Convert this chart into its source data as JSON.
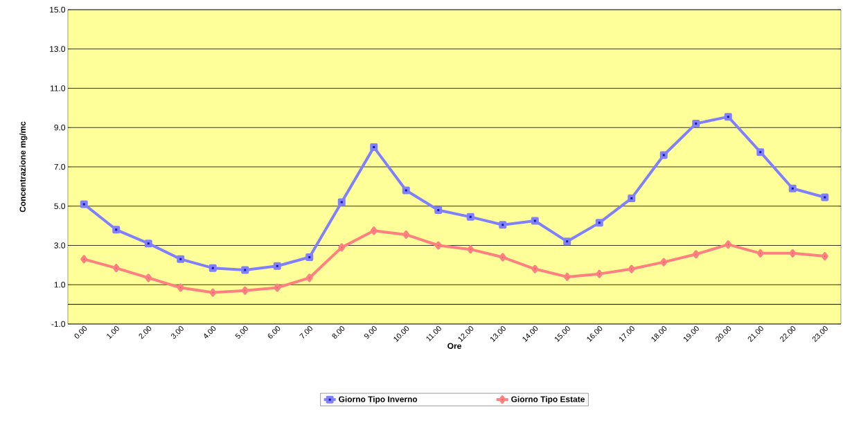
{
  "chart_data": {
    "type": "line",
    "xlabel": "Ore",
    "ylabel": "Concentrazione  mg/mc",
    "categories": [
      "0.00",
      "1.00",
      "2.00",
      "3.00",
      "4.00",
      "5.00",
      "6.00",
      "7.00",
      "8.00",
      "9.00",
      "10.00",
      "11.00",
      "12.00",
      "13.00",
      "14.00",
      "15.00",
      "16.00",
      "17.00",
      "18.00",
      "19.00",
      "20.00",
      "21.00",
      "22.00",
      "23.00"
    ],
    "series": [
      {
        "name": "Giorno Tipo Inverno",
        "color": "#8080ff",
        "marker": "square",
        "values": [
          5.1,
          3.8,
          3.1,
          2.3,
          1.85,
          1.75,
          1.95,
          2.4,
          5.2,
          8.0,
          5.8,
          4.8,
          4.45,
          4.05,
          4.25,
          3.2,
          4.15,
          5.4,
          7.6,
          9.2,
          9.55,
          7.75,
          5.9,
          5.45
        ]
      },
      {
        "name": "Giorno Tipo Estate",
        "color": "#ff8080",
        "marker": "diamond",
        "values": [
          2.3,
          1.85,
          1.35,
          0.85,
          0.6,
          0.7,
          0.85,
          1.35,
          2.9,
          3.75,
          3.55,
          3.0,
          2.8,
          2.4,
          1.8,
          1.4,
          1.55,
          1.8,
          2.15,
          2.55,
          3.05,
          2.6,
          2.6,
          2.45
        ]
      }
    ],
    "ylim": [
      -1,
      15
    ],
    "yticks": [
      {
        "value": -1,
        "label": "-1.0"
      },
      {
        "value": 1,
        "label": "1.0"
      },
      {
        "value": 3,
        "label": "3.0"
      },
      {
        "value": 5,
        "label": "5.0"
      },
      {
        "value": 7,
        "label": "7.0"
      },
      {
        "value": 9,
        "label": "9.0"
      },
      {
        "value": 11,
        "label": "11.0"
      },
      {
        "value": 13,
        "label": "13.0"
      },
      {
        "value": 15,
        "label": "15.0"
      }
    ],
    "ref_lines": [
      {
        "axis": "y",
        "value": 0,
        "color": "#000000"
      }
    ],
    "grid": "y",
    "legend": "bottom"
  }
}
